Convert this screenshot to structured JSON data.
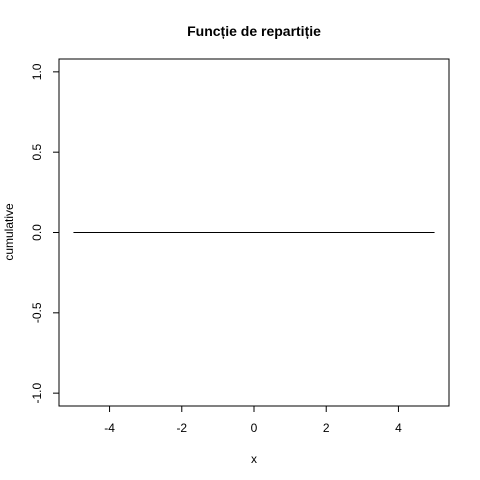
{
  "chart_data": {
    "type": "line",
    "title": "Funcție de repartiție",
    "xlabel": "x",
    "ylabel": "cumulative",
    "xlim": [
      -5.4,
      5.4
    ],
    "ylim": [
      -1.08,
      1.08
    ],
    "x_ticks": [
      -4,
      -2,
      0,
      2,
      4
    ],
    "x_tick_labels": [
      "-4",
      "-2",
      "0",
      "2",
      "4"
    ],
    "y_ticks": [
      -1,
      -0.5,
      0,
      0.5,
      1
    ],
    "y_tick_labels": [
      "-1.0",
      "-0.5",
      "0.0",
      "0.5",
      "1.0"
    ],
    "grid": false,
    "series": [
      {
        "color": "#000000",
        "x": [
          -5,
          5
        ],
        "y": [
          0,
          0
        ]
      }
    ]
  }
}
